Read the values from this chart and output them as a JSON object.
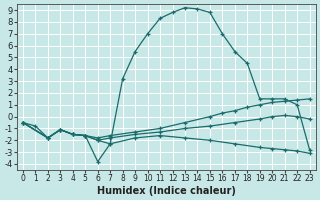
{
  "xlabel": "Humidex (Indice chaleur)",
  "bg_color": "#c8e8e8",
  "grid_color": "#ffffff",
  "line_color": "#1a6b6b",
  "xlim": [
    -0.5,
    23.5
  ],
  "ylim": [
    -4.5,
    9.5
  ],
  "xticks": [
    0,
    1,
    2,
    3,
    4,
    5,
    6,
    7,
    8,
    9,
    10,
    11,
    12,
    13,
    14,
    15,
    16,
    17,
    18,
    19,
    20,
    21,
    22,
    23
  ],
  "yticks": [
    -4,
    -3,
    -2,
    -1,
    0,
    1,
    2,
    3,
    4,
    5,
    6,
    7,
    8,
    9
  ],
  "lines": [
    {
      "x": [
        0,
        1,
        2,
        3,
        4,
        5,
        6,
        7,
        8,
        9,
        10,
        11,
        12,
        13,
        14,
        15,
        16,
        17,
        18,
        19,
        20,
        21,
        22,
        23
      ],
      "y": [
        -0.5,
        -0.8,
        -1.8,
        -1.1,
        -1.5,
        -1.6,
        -2.0,
        -2.3,
        3.2,
        5.5,
        7.0,
        8.3,
        8.8,
        9.2,
        9.1,
        8.8,
        7.0,
        5.5,
        4.5,
        1.5,
        1.5,
        1.5,
        1.0,
        -2.8
      ]
    },
    {
      "x": [
        0,
        2,
        3,
        4,
        5,
        6,
        7,
        9,
        11,
        13,
        15,
        16,
        17,
        18,
        19,
        20,
        21,
        22,
        23
      ],
      "y": [
        -0.5,
        -1.8,
        -1.1,
        -1.5,
        -1.6,
        -1.8,
        -1.6,
        -1.3,
        -1.0,
        -0.5,
        0.0,
        0.3,
        0.5,
        0.8,
        1.0,
        1.2,
        1.3,
        1.4,
        1.5
      ]
    },
    {
      "x": [
        0,
        2,
        3,
        4,
        5,
        6,
        7,
        9,
        11,
        13,
        15,
        17,
        19,
        20,
        21,
        22,
        23
      ],
      "y": [
        -0.5,
        -1.8,
        -1.1,
        -1.5,
        -1.6,
        -2.0,
        -1.8,
        -1.5,
        -1.3,
        -1.0,
        -0.8,
        -0.5,
        -0.2,
        0.0,
        0.1,
        0.0,
        -0.2
      ]
    },
    {
      "x": [
        0,
        2,
        3,
        4,
        5,
        6,
        7,
        9,
        11,
        13,
        15,
        17,
        19,
        20,
        21,
        22,
        23
      ],
      "y": [
        -0.5,
        -1.8,
        -1.1,
        -1.5,
        -1.6,
        -3.8,
        -2.3,
        -1.8,
        -1.6,
        -1.8,
        -2.0,
        -2.3,
        -2.6,
        -2.7,
        -2.8,
        -2.9,
        -3.1
      ]
    }
  ]
}
